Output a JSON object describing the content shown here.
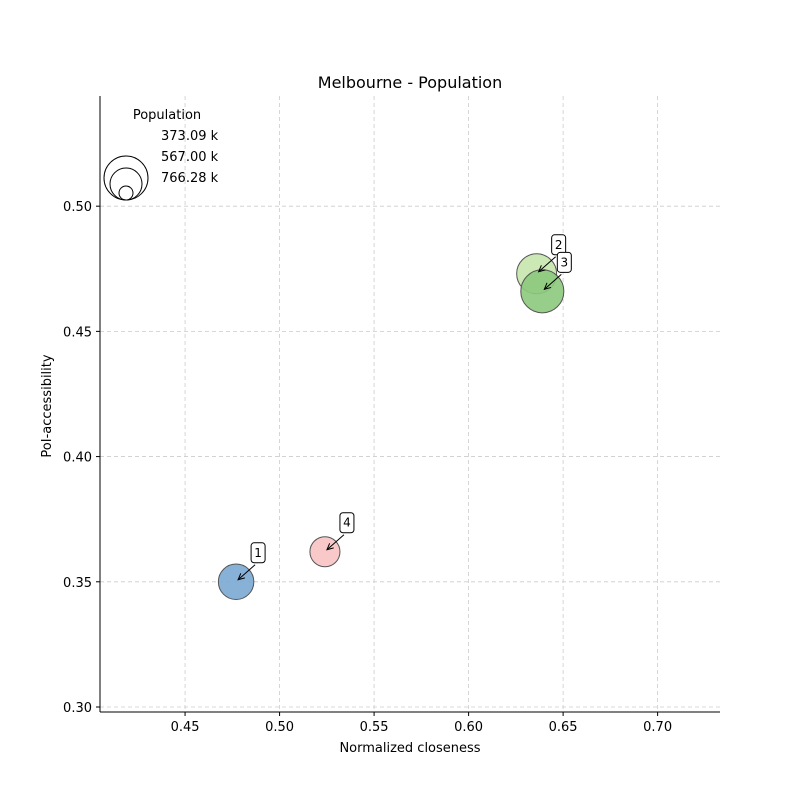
{
  "chart_data": {
    "type": "scatter",
    "title": "Melbourne - Population",
    "xlabel": "Normalized closeness",
    "ylabel": "PoI-accessibility",
    "xlim": [
      0.405,
      0.733
    ],
    "ylim": [
      0.298,
      0.544
    ],
    "xticks": [
      0.45,
      0.5,
      0.55,
      0.6,
      0.65,
      0.7
    ],
    "xtick_labels": [
      "0.45",
      "0.50",
      "0.55",
      "0.60",
      "0.65",
      "0.70"
    ],
    "yticks": [
      0.3,
      0.35,
      0.4,
      0.45,
      0.5
    ],
    "ytick_labels": [
      "0.30",
      "0.35",
      "0.40",
      "0.45",
      "0.50"
    ],
    "grid": true,
    "legend": {
      "title": "Population",
      "placement": "top-left",
      "entries": [
        {
          "label": "373.09 k",
          "size": 373.09
        },
        {
          "label": "567.00 k",
          "size": 567.0
        },
        {
          "label": "766.28 k",
          "size": 766.28
        }
      ]
    },
    "points": [
      {
        "label": "1",
        "x": 0.477,
        "y": 0.35,
        "size": 520,
        "color": "#7aa9d3"
      },
      {
        "label": "2",
        "x": 0.636,
        "y": 0.473,
        "size": 660,
        "color": "#c5e6ad"
      },
      {
        "label": "3",
        "x": 0.639,
        "y": 0.466,
        "size": 766,
        "color": "#8cc97c"
      },
      {
        "label": "4",
        "x": 0.524,
        "y": 0.362,
        "size": 373,
        "color": "#f8c3c4"
      }
    ]
  }
}
